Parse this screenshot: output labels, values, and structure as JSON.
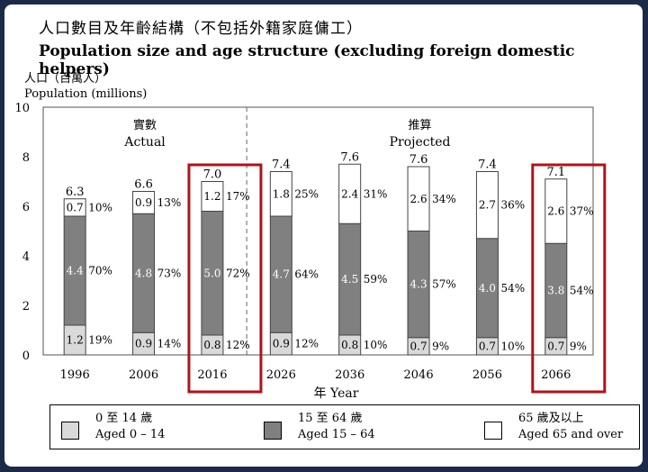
{
  "title_zh": "人口數目及年齡結構（不包括外籍家庭傭工）",
  "title_en": "Population size and age structure (excluding foreign domestic helpers)",
  "chart_data": {
    "type": "bar",
    "stacked": true,
    "ylabel_zh": "人口（百萬人）",
    "ylabel_en": "Population (millions)",
    "xlabel_zh": "年",
    "xlabel_en": "Year",
    "ylim": [
      0,
      10
    ],
    "yticks": [
      0,
      2,
      4,
      6,
      8,
      10
    ],
    "categories": [
      "1996",
      "2006",
      "2016",
      "2026",
      "2036",
      "2046",
      "2056",
      "2066"
    ],
    "totals": [
      "6.3",
      "6.6",
      "7.0",
      "7.4",
      "7.6",
      "7.6",
      "7.4",
      "7.1"
    ],
    "section_labels": [
      {
        "zh": "實數",
        "en": "Actual"
      },
      {
        "zh": "推算",
        "en": "Projected"
      }
    ],
    "highlighted": [
      "2016",
      "2066"
    ],
    "series": [
      {
        "name": "Aged 0 – 14",
        "name_zh": "0 至 14 歲",
        "color": "#d9d9d9",
        "values": [
          1.2,
          0.9,
          0.8,
          0.9,
          0.8,
          0.7,
          0.7,
          0.7
        ],
        "percent": [
          "19%",
          "14%",
          "12%",
          "12%",
          "10%",
          "9%",
          "10%",
          "9%"
        ]
      },
      {
        "name": "Aged 15 – 64",
        "name_zh": "15 至 64 歲",
        "color": "#808080",
        "values": [
          4.4,
          4.8,
          5.0,
          4.7,
          4.5,
          4.3,
          4.0,
          3.8
        ],
        "percent": [
          "70%",
          "73%",
          "72%",
          "64%",
          "59%",
          "57%",
          "54%",
          "54%"
        ]
      },
      {
        "name": "Aged 65 and over",
        "name_zh": "65 歲及以上",
        "color": "#ffffff",
        "values": [
          0.7,
          0.9,
          1.2,
          1.8,
          2.4,
          2.6,
          2.7,
          2.6
        ],
        "percent": [
          "10%",
          "13%",
          "17%",
          "25%",
          "31%",
          "34%",
          "36%",
          "37%"
        ]
      }
    ],
    "grid": false,
    "legend_position": "bottom"
  },
  "legend": [
    {
      "zh": "0 至 14 歲",
      "en": "Aged 0 – 14",
      "color": "#d9d9d9"
    },
    {
      "zh": "15 至 64 歲",
      "en": "Aged 15 – 64",
      "color": "#808080"
    },
    {
      "zh": "65 歲及以上",
      "en": "Aged 65 and over",
      "color": "#ffffff"
    }
  ]
}
